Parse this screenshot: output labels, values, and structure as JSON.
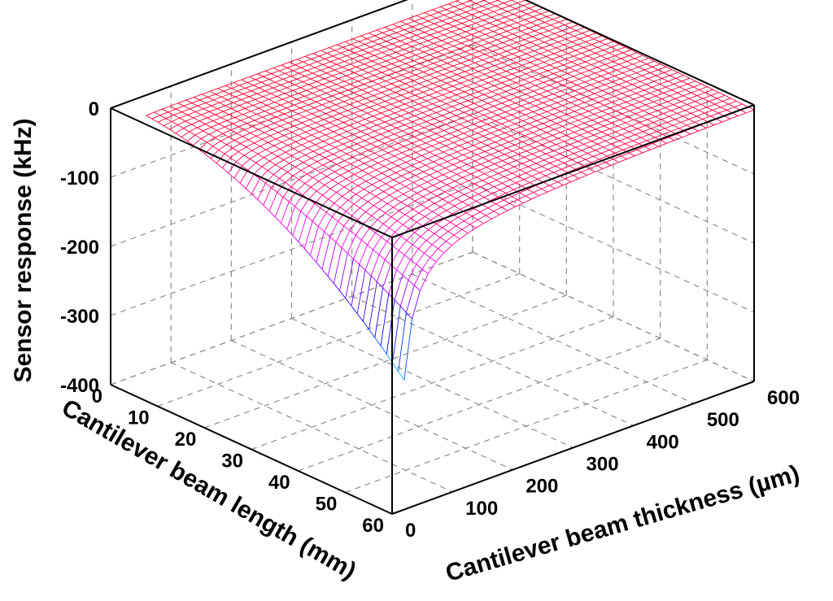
{
  "chart_data": {
    "type": "surface",
    "title": "",
    "xlabel": "Cantilever beam thickness (µm)",
    "ylabel": "Cantilever beam length (mm)",
    "zlabel": "Sensor response (kHz)",
    "x_ticks": [
      "0",
      "100",
      "200",
      "300",
      "400",
      "500",
      "600"
    ],
    "y_ticks": [
      "0",
      "10",
      "20",
      "30",
      "40",
      "50",
      "60"
    ],
    "z_ticks": [
      "0",
      "-100",
      "-200",
      "-300",
      "-400"
    ],
    "xlim": [
      0,
      600
    ],
    "ylim": [
      0,
      60
    ],
    "zlim": [
      -400,
      0
    ],
    "grid": true,
    "colormap": "hsv",
    "surface_samples": [
      {
        "thickness": 20,
        "length": 60,
        "response": -393
      },
      {
        "thickness": 100,
        "length": 60,
        "response": -120
      },
      {
        "thickness": 100,
        "length": 30,
        "response": -15
      },
      {
        "thickness": 300,
        "length": 60,
        "response": -10
      },
      {
        "thickness": 600,
        "length": 60,
        "response": -3
      },
      {
        "thickness": 600,
        "length": 5,
        "response": -1
      },
      {
        "thickness": 20,
        "length": 5,
        "response": -1
      }
    ]
  }
}
